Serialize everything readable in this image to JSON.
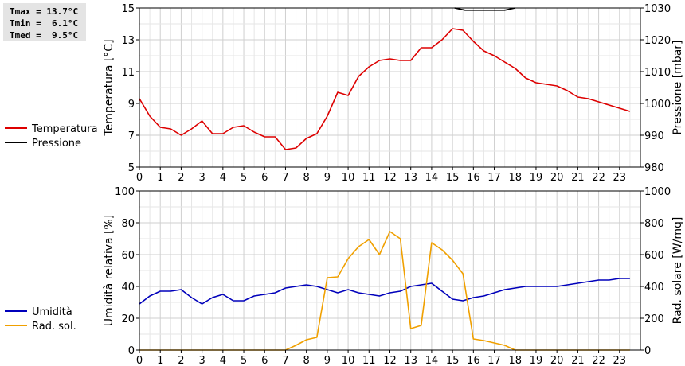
{
  "stats": {
    "tmax": "Tmax = 13.7°C",
    "tmin": "Tmin =  6.1°C",
    "tmed": "Tmed =  9.5°C"
  },
  "chart_data": [
    {
      "type": "line",
      "xlim": [
        0,
        24
      ],
      "x_ticks": [
        "0",
        "1",
        "2",
        "3",
        "4",
        "5",
        "6",
        "7",
        "8",
        "9",
        "10",
        "11",
        "12",
        "13",
        "14",
        "15",
        "16",
        "17",
        "18",
        "19",
        "20",
        "21",
        "22",
        "23"
      ],
      "ylabel_left": "Temperatura [°C]",
      "ylabel_right": "Pressione [mbar]",
      "ylim_left": [
        5,
        15
      ],
      "ylim_right": [
        980,
        1030
      ],
      "y_ticks_left": [
        "5",
        "7",
        "9",
        "11",
        "13",
        "15"
      ],
      "y_ticks_right": [
        "980",
        "990",
        "1000",
        "1010",
        "1020",
        "1030"
      ],
      "grid": true,
      "series": [
        {
          "name": "Temperatura",
          "color": "#dd0000",
          "axis": "left",
          "x": [
            0,
            0.5,
            1,
            1.5,
            2,
            2.5,
            3,
            3.5,
            4,
            4.5,
            5,
            5.5,
            6,
            6.5,
            7,
            7.5,
            8,
            8.5,
            9,
            9.5,
            10,
            10.5,
            11,
            11.5,
            12,
            12.5,
            13,
            13.5,
            14,
            14.5,
            15,
            15.5,
            16,
            16.5,
            17,
            17.5,
            18,
            18.5,
            19,
            19.5,
            20,
            20.5,
            21,
            21.5,
            22,
            22.5,
            23,
            23.5
          ],
          "values": [
            9.3,
            8.2,
            7.5,
            7.4,
            7.0,
            7.4,
            7.9,
            7.1,
            7.1,
            7.5,
            7.6,
            7.2,
            6.9,
            6.9,
            6.1,
            6.2,
            6.8,
            7.1,
            8.2,
            9.7,
            9.5,
            10.7,
            11.3,
            11.7,
            11.8,
            11.7,
            11.7,
            12.5,
            12.5,
            13.0,
            13.7,
            13.6,
            12.9,
            12.3,
            12.0,
            11.6,
            11.2,
            10.6,
            10.3,
            10.2,
            10.1,
            9.8,
            9.4,
            9.3,
            9.1,
            8.9,
            8.7,
            8.5
          ]
        },
        {
          "name": "Pressione",
          "color": "#000000",
          "axis": "right",
          "x": [
            15.1,
            15.6,
            16,
            16.5,
            17,
            17.5,
            18
          ],
          "values": [
            1030.0,
            1029.3,
            1029.3,
            1029.3,
            1029.3,
            1029.3,
            1030.0
          ]
        }
      ]
    },
    {
      "type": "line",
      "xlim": [
        0,
        24
      ],
      "x_ticks": [
        "0",
        "1",
        "2",
        "3",
        "4",
        "5",
        "6",
        "7",
        "8",
        "9",
        "10",
        "11",
        "12",
        "13",
        "14",
        "15",
        "16",
        "17",
        "18",
        "19",
        "20",
        "21",
        "22",
        "23"
      ],
      "ylabel_left": "Umidità relativa [%]",
      "ylabel_right": "Rad. solare [W/mq]",
      "ylim_left": [
        0,
        100
      ],
      "ylim_right": [
        0,
        1000
      ],
      "y_ticks_left": [
        "0",
        "20",
        "40",
        "60",
        "80",
        "100"
      ],
      "y_ticks_right": [
        "0",
        "200",
        "400",
        "600",
        "800",
        "1000"
      ],
      "grid": true,
      "series": [
        {
          "name": "Umidità",
          "color": "#0000bb",
          "axis": "left",
          "x": [
            0,
            0.5,
            1,
            1.5,
            2,
            2.5,
            3,
            3.5,
            4,
            4.5,
            5,
            5.5,
            6,
            6.5,
            7,
            7.5,
            8,
            8.5,
            9,
            9.5,
            10,
            10.5,
            11,
            11.5,
            12,
            12.5,
            13,
            13.5,
            14,
            14.5,
            15,
            15.5,
            16,
            16.5,
            17,
            17.5,
            18,
            18.5,
            19,
            19.5,
            20,
            20.5,
            21,
            21.5,
            22,
            22.5,
            23,
            23.5
          ],
          "values": [
            29,
            34,
            37,
            37,
            38,
            33,
            29,
            33,
            35,
            31,
            31,
            34,
            35,
            36,
            39,
            40,
            41,
            40,
            38,
            36,
            38,
            36,
            35,
            34,
            36,
            37,
            40,
            41,
            42,
            37,
            32,
            31,
            33,
            34,
            36,
            38,
            39,
            40,
            40,
            40,
            40,
            41,
            42,
            43,
            44,
            44,
            45,
            45
          ]
        },
        {
          "name": "Rad. sol.",
          "color": "#f0a000",
          "axis": "right",
          "x": [
            0,
            0.5,
            1,
            1.5,
            2,
            2.5,
            3,
            3.5,
            4,
            4.5,
            5,
            5.5,
            6,
            6.5,
            7,
            7.5,
            8,
            8.5,
            9,
            9.5,
            10,
            10.5,
            11,
            11.5,
            12,
            12.5,
            13,
            13.5,
            14,
            14.5,
            15,
            15.5,
            16,
            16.5,
            17,
            17.5,
            18,
            18.5,
            19,
            19.5,
            20,
            20.5,
            21,
            21.5,
            22,
            22.5,
            23,
            23.5
          ],
          "values": [
            0,
            0,
            0,
            0,
            0,
            0,
            0,
            0,
            0,
            0,
            0,
            0,
            0,
            0,
            0,
            30,
            65,
            80,
            455,
            460,
            575,
            650,
            695,
            600,
            745,
            700,
            135,
            155,
            675,
            630,
            565,
            480,
            70,
            60,
            45,
            30,
            0,
            0,
            0,
            0,
            0,
            0,
            0,
            0,
            0,
            0,
            0,
            0
          ]
        }
      ]
    }
  ]
}
